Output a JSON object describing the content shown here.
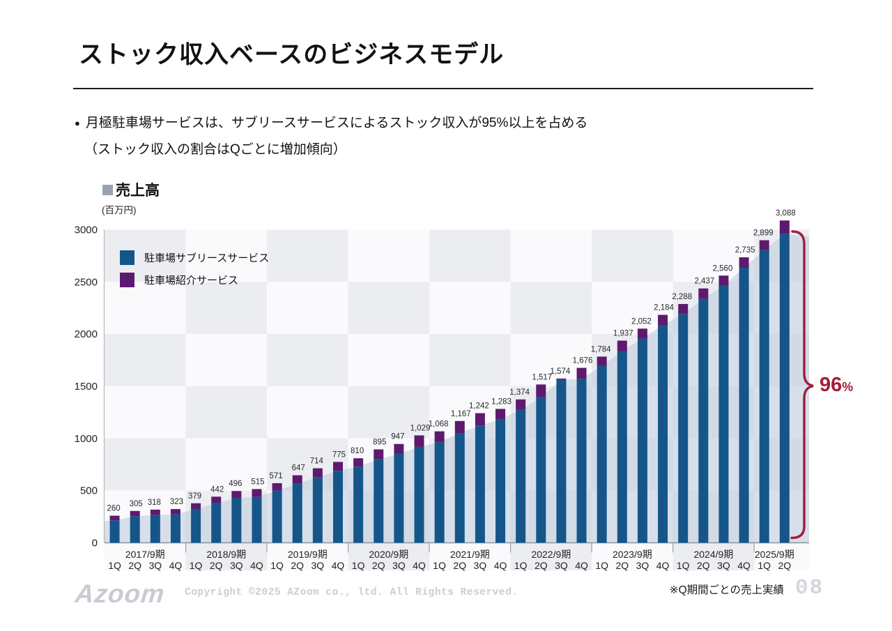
{
  "slide": {
    "title": "ストック収入ベースのビジネスモデル",
    "bullet_dot": "●",
    "bullet_line1": "月極駐車場サービスは、サブリースサービスによるストック収入が95%以上を占める",
    "bullet_line2": "（ストック収入の割合はQごとに増加傾向）",
    "footnote": "※Q期間ごとの売上実績",
    "copyright": "Copyright ©2025 AZoom co., ltd. All Rights Reserved.",
    "logo_text": "Azoom",
    "page_number": "08"
  },
  "chart_data": {
    "type": "bar",
    "stacked": true,
    "title": "売上高",
    "title_bullet_color": "#99a3b0",
    "unit_label": "(百万円)",
    "ylim": [
      0,
      3000
    ],
    "yticks": [
      0,
      500,
      1000,
      1500,
      2000,
      2500,
      3000
    ],
    "grid": "checkerboard-bands",
    "legend_position": "inside-top-left",
    "fiscal_years": [
      {
        "label": "2017/9期",
        "quarters": [
          "1Q",
          "2Q",
          "3Q",
          "4Q"
        ]
      },
      {
        "label": "2018/9期",
        "quarters": [
          "1Q",
          "2Q",
          "3Q",
          "4Q"
        ]
      },
      {
        "label": "2019/9期",
        "quarters": [
          "1Q",
          "2Q",
          "3Q",
          "4Q"
        ]
      },
      {
        "label": "2020/9期",
        "quarters": [
          "1Q",
          "2Q",
          "3Q",
          "4Q"
        ]
      },
      {
        "label": "2021/9期",
        "quarters": [
          "1Q",
          "2Q",
          "3Q",
          "4Q"
        ]
      },
      {
        "label": "2022/9期",
        "quarters": [
          "1Q",
          "2Q",
          "3Q",
          "4Q"
        ]
      },
      {
        "label": "2023/9期",
        "quarters": [
          "1Q",
          "2Q",
          "3Q",
          "4Q"
        ]
      },
      {
        "label": "2024/9期",
        "quarters": [
          "1Q",
          "2Q",
          "3Q",
          "4Q"
        ]
      },
      {
        "label": "2025/9期",
        "quarters": [
          "1Q",
          "2Q"
        ]
      }
    ],
    "totals": [
      260,
      305,
      318,
      323,
      379,
      442,
      496,
      515,
      571,
      647,
      714,
      775,
      810,
      895,
      947,
      1029,
      1068,
      1167,
      1242,
      1283,
      1374,
      1517,
      1574,
      1676,
      1784,
      1937,
      2052,
      2184,
      2288,
      2437,
      2560,
      2735,
      2899,
      3088
    ],
    "series": [
      {
        "name": "駐車場サブリースサービス",
        "color": "#15568a",
        "values": [
          215,
          255,
          266,
          273,
          324,
          380,
          428,
          440,
          499,
          567,
          629,
          690,
          730,
          800,
          852,
          919,
          963,
          1052,
          1124,
          1183,
          1274,
          1395,
          1562,
          1571,
          1694,
          1837,
          1957,
          2084,
          2193,
          2337,
          2465,
          2635,
          2804,
          2958
        ]
      },
      {
        "name": "駐車場紹介サービス",
        "color": "#5e1a6e",
        "values": [
          45,
          50,
          52,
          50,
          55,
          62,
          68,
          75,
          72,
          80,
          85,
          85,
          80,
          95,
          95,
          110,
          105,
          115,
          118,
          100,
          100,
          122,
          12,
          105,
          90,
          100,
          95,
          100,
          95,
          100,
          95,
          100,
          95,
          130
        ]
      }
    ],
    "trend_area_color": "#bfcddd",
    "checker_colors": {
      "gray": "#ecedf1",
      "light": "#fafafc"
    },
    "annotation": {
      "value": "96",
      "unit": "%",
      "color": "#a31d3c"
    }
  }
}
